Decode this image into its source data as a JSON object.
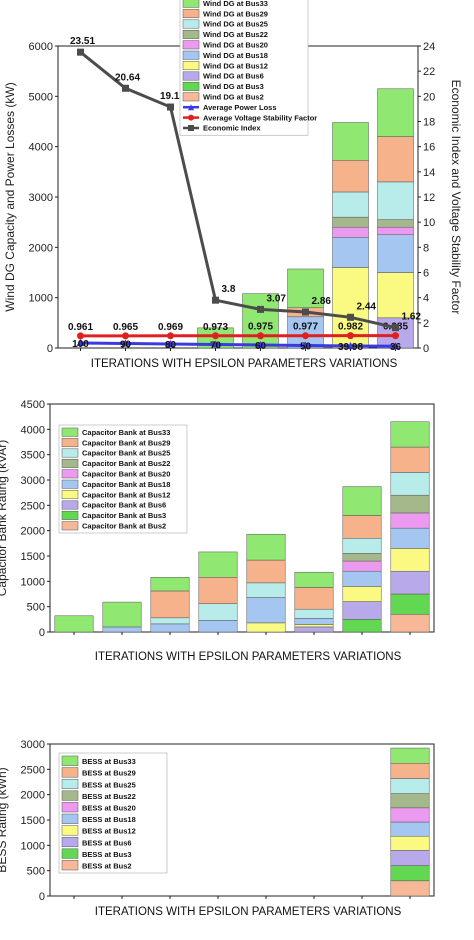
{
  "colors": {
    "Bus33": "#90e872",
    "Bus29": "#f6b28a",
    "Bus25": "#b8ecea",
    "Bus22": "#a4b88c",
    "Bus20": "#ec9af0",
    "Bus18": "#a6c6f2",
    "Bus12": "#fafa82",
    "Bus6": "#b8aaea",
    "Bus3": "#62d852",
    "Bus2": "#f6b896",
    "loss": "#3a3ae0",
    "vsf": "#e02020",
    "econ": "#4c4c4c"
  },
  "chart_data": [
    {
      "type": "bar",
      "xlabel": "ITERATIONS WITH EPSILON PARAMETERS VARIATIONS",
      "ylabel": "Wind DG Capacity and Power Losses (kW)",
      "y2label": "Economic Index and Voltage Stability Factor",
      "ylim": [
        0,
        6000
      ],
      "y2lim": [
        0,
        24
      ],
      "yticks": [
        "0",
        "1000",
        "2000",
        "3000",
        "4000",
        "5000",
        "6000"
      ],
      "y2ticks": [
        "0",
        "2",
        "4",
        "6",
        "8",
        "10",
        "12",
        "14",
        "16",
        "18",
        "20",
        "22",
        "24"
      ],
      "n_groups": 8,
      "stack_order": [
        "Bus2",
        "Bus3",
        "Bus6",
        "Bus12",
        "Bus18",
        "Bus20",
        "Bus22",
        "Bus25",
        "Bus29",
        "Bus33"
      ],
      "series": [
        {
          "name": "Wind DG at Bus2",
          "key": "Bus2",
          "values": [
            0,
            0,
            0,
            0,
            0,
            0,
            0,
            0
          ]
        },
        {
          "name": "Wind DG at Bus3",
          "key": "Bus3",
          "values": [
            0,
            0,
            0,
            0,
            0,
            0,
            0,
            0
          ]
        },
        {
          "name": "Wind DG at Bus6",
          "key": "Bus6",
          "values": [
            0,
            0,
            0,
            0,
            0,
            0,
            0,
            600
          ]
        },
        {
          "name": "Wind DG at Bus12",
          "key": "Bus12",
          "values": [
            0,
            0,
            0,
            0,
            0,
            0,
            1600,
            900
          ]
        },
        {
          "name": "Wind DG at Bus18",
          "key": "Bus18",
          "values": [
            0,
            0,
            0,
            0,
            0,
            620,
            600,
            750
          ]
        },
        {
          "name": "Wind DG at Bus20",
          "key": "Bus20",
          "values": [
            0,
            0,
            0,
            0,
            0,
            0,
            200,
            150
          ]
        },
        {
          "name": "Wind DG at Bus22",
          "key": "Bus22",
          "values": [
            0,
            0,
            0,
            0,
            0,
            0,
            200,
            150
          ]
        },
        {
          "name": "Wind DG at Bus25",
          "key": "Bus25",
          "values": [
            0,
            0,
            0,
            0,
            0,
            0,
            500,
            750
          ]
        },
        {
          "name": "Wind DG at Bus29",
          "key": "Bus29",
          "values": [
            0,
            0,
            0,
            0,
            0,
            180,
            630,
            900
          ]
        },
        {
          "name": "Wind DG at Bus33",
          "key": "Bus33",
          "values": [
            0,
            0,
            0,
            400,
            1080,
            770,
            750,
            950
          ]
        }
      ],
      "lines": [
        {
          "name": "Average Power Loss",
          "key": "loss",
          "axis": "left",
          "values": [
            100,
            90,
            80,
            70,
            60,
            50,
            39.98,
            36
          ],
          "labels": [
            "100",
            "90",
            "80",
            "70",
            "60",
            "50",
            "39.98",
            "36"
          ]
        },
        {
          "name": "Average Voltage Stability Factor",
          "key": "vsf",
          "axis": "right",
          "values": [
            0.961,
            0.965,
            0.969,
            0.973,
            0.975,
            0.977,
            0.982,
            0.985
          ],
          "labels": [
            "0.961",
            "0.965",
            "0.969",
            "0.973",
            "0.975",
            "0.977",
            "0.982",
            "0.985"
          ]
        },
        {
          "name": "Economic Index",
          "key": "econ",
          "axis": "right",
          "values": [
            23.51,
            20.64,
            19.15,
            3.8,
            3.07,
            2.86,
            2.44,
            1.62
          ],
          "labels": [
            "23.51",
            "20.64",
            "19.15",
            "3.8",
            "3.07",
            "2.86",
            "2.44",
            "1.62"
          ]
        }
      ],
      "legend": "top-center"
    },
    {
      "type": "bar",
      "xlabel": "ITERATIONS WITH EPSILON PARAMETERS VARIATIONS",
      "ylabel": "Capacitor Bank Rating (kVAr)",
      "ylim": [
        0,
        4500
      ],
      "yticks": [
        "0",
        "500",
        "1000",
        "1500",
        "2000",
        "2500",
        "3000",
        "3500",
        "4000",
        "4500"
      ],
      "n_groups": 8,
      "stack_order": [
        "Bus2",
        "Bus3",
        "Bus6",
        "Bus12",
        "Bus18",
        "Bus20",
        "Bus22",
        "Bus25",
        "Bus29",
        "Bus33"
      ],
      "series": [
        {
          "name": "Capacitor Bank at Bus2",
          "key": "Bus2",
          "values": [
            0,
            0,
            0,
            0,
            0,
            0,
            0,
            350
          ]
        },
        {
          "name": "Capacitor Bank at Bus3",
          "key": "Bus3",
          "values": [
            0,
            0,
            0,
            0,
            0,
            0,
            250,
            400
          ]
        },
        {
          "name": "Capacitor Bank at Bus6",
          "key": "Bus6",
          "values": [
            0,
            0,
            0,
            0,
            0,
            100,
            350,
            450
          ]
        },
        {
          "name": "Capacitor Bank at Bus12",
          "key": "Bus12",
          "values": [
            0,
            0,
            0,
            0,
            180,
            50,
            300,
            450
          ]
        },
        {
          "name": "Capacitor Bank at Bus18",
          "key": "Bus18",
          "values": [
            0,
            100,
            160,
            230,
            500,
            120,
            300,
            400
          ]
        },
        {
          "name": "Capacitor Bank at Bus20",
          "key": "Bus20",
          "values": [
            0,
            0,
            0,
            0,
            0,
            0,
            200,
            300
          ]
        },
        {
          "name": "Capacitor Bank at Bus22",
          "key": "Bus22",
          "values": [
            0,
            0,
            0,
            0,
            0,
            0,
            150,
            350
          ]
        },
        {
          "name": "Capacitor Bank at Bus25",
          "key": "Bus25",
          "values": [
            0,
            0,
            120,
            330,
            290,
            180,
            300,
            450
          ]
        },
        {
          "name": "Capacitor Bank at Bus29",
          "key": "Bus29",
          "values": [
            0,
            0,
            530,
            520,
            450,
            430,
            450,
            500
          ]
        },
        {
          "name": "Capacitor Bank at Bus33",
          "key": "Bus33",
          "values": [
            320,
            490,
            270,
            500,
            510,
            300,
            570,
            500
          ]
        }
      ],
      "legend": "top-left"
    },
    {
      "type": "bar",
      "xlabel": "ITERATIONS WITH EPSILON PARAMETERS VARIATIONS",
      "ylabel": "BESS Rating (kWh)",
      "ylim": [
        0,
        3000
      ],
      "yticks": [
        "0",
        "500",
        "1000",
        "1500",
        "2000",
        "2500",
        "3000"
      ],
      "n_groups": 8,
      "stack_order": [
        "Bus2",
        "Bus3",
        "Bus6",
        "Bus12",
        "Bus18",
        "Bus20",
        "Bus22",
        "Bus25",
        "Bus29",
        "Bus33"
      ],
      "series": [
        {
          "name": "BESS at Bus2",
          "key": "Bus2",
          "values": [
            0,
            0,
            0,
            0,
            0,
            0,
            0,
            300
          ]
        },
        {
          "name": "BESS at Bus3",
          "key": "Bus3",
          "values": [
            0,
            0,
            0,
            0,
            0,
            0,
            0,
            300
          ]
        },
        {
          "name": "BESS at Bus6",
          "key": "Bus6",
          "values": [
            0,
            0,
            0,
            0,
            0,
            0,
            0,
            300
          ]
        },
        {
          "name": "BESS at Bus12",
          "key": "Bus12",
          "values": [
            0,
            0,
            0,
            0,
            0,
            0,
            0,
            280
          ]
        },
        {
          "name": "BESS at Bus18",
          "key": "Bus18",
          "values": [
            0,
            0,
            0,
            0,
            0,
            0,
            0,
            280
          ]
        },
        {
          "name": "BESS at Bus20",
          "key": "Bus20",
          "values": [
            0,
            0,
            0,
            0,
            0,
            0,
            0,
            280
          ]
        },
        {
          "name": "BESS at Bus22",
          "key": "Bus22",
          "values": [
            0,
            0,
            0,
            0,
            0,
            0,
            0,
            280
          ]
        },
        {
          "name": "BESS at Bus25",
          "key": "Bus25",
          "values": [
            0,
            0,
            0,
            0,
            0,
            0,
            0,
            300
          ]
        },
        {
          "name": "BESS at Bus29",
          "key": "Bus29",
          "values": [
            0,
            0,
            0,
            0,
            0,
            0,
            0,
            300
          ]
        },
        {
          "name": "BESS at Bus33",
          "key": "Bus33",
          "values": [
            0,
            0,
            0,
            0,
            0,
            0,
            0,
            300
          ]
        }
      ],
      "legend": "top-left"
    }
  ]
}
